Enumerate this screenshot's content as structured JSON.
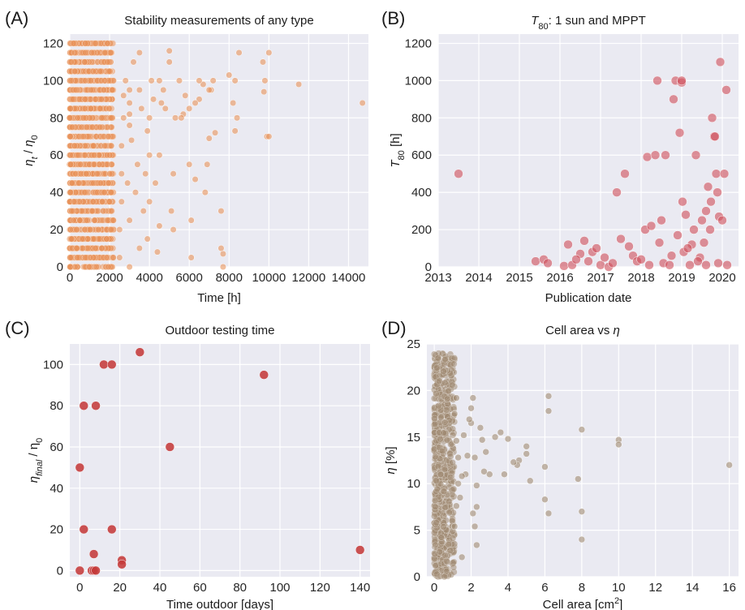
{
  "chart_data": [
    {
      "panel": "(A)",
      "type": "scatter",
      "title": "Stability measurements of any type",
      "xlabel": "Time [h]",
      "ylabel": "ηt / η0",
      "xlim": [
        0,
        15000
      ],
      "ylim": [
        0,
        125
      ],
      "xticks": [
        0,
        2000,
        4000,
        6000,
        8000,
        10000,
        12000,
        14000
      ],
      "xtick_labels": [
        "0",
        "2000",
        "4000",
        "6000",
        "8000",
        "10000",
        "12000",
        "14000"
      ],
      "yticks": [
        0,
        20,
        40,
        60,
        80,
        100,
        120
      ],
      "grid": true,
      "color": "#E8925A",
      "points": [
        [
          14700,
          88
        ],
        [
          11500,
          98
        ],
        [
          10000,
          115
        ],
        [
          9900,
          70
        ],
        [
          9700,
          110
        ],
        [
          9800,
          100
        ],
        [
          9750,
          94
        ],
        [
          10000,
          70
        ],
        [
          8500,
          115
        ],
        [
          8300,
          100
        ],
        [
          8200,
          88
        ],
        [
          8400,
          80
        ],
        [
          8300,
          73
        ],
        [
          8000,
          103
        ],
        [
          7600,
          30
        ],
        [
          7600,
          10
        ],
        [
          7700,
          7
        ],
        [
          7700,
          0
        ],
        [
          7200,
          100
        ],
        [
          7100,
          95
        ],
        [
          7000,
          69
        ],
        [
          7300,
          72
        ],
        [
          6800,
          40
        ],
        [
          6900,
          55
        ],
        [
          7000,
          95
        ],
        [
          6700,
          98
        ],
        [
          6500,
          100
        ],
        [
          6500,
          90
        ],
        [
          6300,
          88
        ],
        [
          6000,
          85
        ],
        [
          6300,
          47
        ],
        [
          6000,
          55
        ],
        [
          6100,
          25
        ],
        [
          6100,
          5
        ],
        [
          5800,
          92
        ],
        [
          5700,
          82
        ],
        [
          5500,
          100
        ],
        [
          5600,
          80
        ],
        [
          5300,
          80
        ],
        [
          5000,
          116
        ],
        [
          5000,
          110
        ],
        [
          5200,
          50
        ],
        [
          5100,
          30
        ],
        [
          5200,
          20
        ],
        [
          4800,
          85
        ],
        [
          4700,
          95
        ],
        [
          4500,
          100
        ],
        [
          4500,
          60
        ],
        [
          4600,
          88
        ],
        [
          4300,
          45
        ],
        [
          4500,
          22
        ],
        [
          4400,
          8
        ],
        [
          4200,
          90
        ],
        [
          4000,
          80
        ],
        [
          4100,
          100
        ],
        [
          3900,
          73
        ],
        [
          4000,
          60
        ],
        [
          3800,
          50
        ],
        [
          4000,
          35
        ],
        [
          3700,
          30
        ],
        [
          3900,
          15
        ],
        [
          3500,
          115
        ],
        [
          3500,
          95
        ],
        [
          3600,
          85
        ],
        [
          3400,
          55
        ],
        [
          3300,
          40
        ],
        [
          3500,
          10
        ],
        [
          3200,
          110
        ],
        [
          3100,
          68
        ],
        [
          3000,
          95
        ],
        [
          3000,
          88
        ],
        [
          3000,
          82
        ],
        [
          3000,
          76
        ],
        [
          3000,
          25
        ],
        [
          3000,
          0
        ],
        [
          2900,
          45
        ],
        [
          2800,
          100
        ],
        [
          2700,
          92
        ],
        [
          2700,
          80
        ],
        [
          2600,
          65
        ],
        [
          2600,
          50
        ],
        [
          2600,
          35
        ],
        [
          2500,
          20
        ],
        [
          2500,
          5
        ]
      ],
      "dense_region": {
        "x_max": 2200,
        "y_min": 0,
        "y_max": 122,
        "note": "thousands of overlapping points"
      }
    },
    {
      "panel": "(B)",
      "type": "scatter",
      "title_main": "T",
      "title_sub": "80",
      "title_rest": ": 1 sun and MPPT",
      "xlabel": "Publication date",
      "ylabel_main": "T",
      "ylabel_sub": "80",
      "ylabel_rest": " [h]",
      "xlim": [
        2013,
        2020.4
      ],
      "ylim": [
        0,
        1250
      ],
      "xticks": [
        2013,
        2014,
        2015,
        2016,
        2017,
        2018,
        2019,
        2020
      ],
      "yticks": [
        0,
        200,
        400,
        600,
        800,
        1000,
        1200
      ],
      "grid": true,
      "color": "#D0525E",
      "points": [
        [
          2013.5,
          500
        ],
        [
          2015.4,
          30
        ],
        [
          2015.6,
          40
        ],
        [
          2015.7,
          20
        ],
        [
          2016.1,
          5
        ],
        [
          2016.2,
          120
        ],
        [
          2016.3,
          10
        ],
        [
          2016.5,
          70
        ],
        [
          2016.6,
          140
        ],
        [
          2016.7,
          30
        ],
        [
          2016.8,
          80
        ],
        [
          2016.9,
          100
        ],
        [
          2017.0,
          10
        ],
        [
          2017.1,
          50
        ],
        [
          2017.2,
          0
        ],
        [
          2017.4,
          400
        ],
        [
          2017.5,
          150
        ],
        [
          2017.6,
          500
        ],
        [
          2017.7,
          110
        ],
        [
          2017.8,
          60
        ],
        [
          2017.9,
          30
        ],
        [
          2018.0,
          40
        ],
        [
          2018.1,
          200
        ],
        [
          2018.15,
          590
        ],
        [
          2018.25,
          220
        ],
        [
          2018.35,
          600
        ],
        [
          2018.4,
          1000
        ],
        [
          2018.45,
          130
        ],
        [
          2018.5,
          250
        ],
        [
          2018.55,
          20
        ],
        [
          2018.6,
          600
        ],
        [
          2018.7,
          10
        ],
        [
          2018.75,
          60
        ],
        [
          2018.8,
          900
        ],
        [
          2018.85,
          1000
        ],
        [
          2018.9,
          170
        ],
        [
          2018.95,
          720
        ],
        [
          2019.0,
          990
        ],
        [
          2019.0,
          1000
        ],
        [
          2019.02,
          350
        ],
        [
          2019.05,
          80
        ],
        [
          2019.1,
          280
        ],
        [
          2019.2,
          10
        ],
        [
          2019.25,
          120
        ],
        [
          2019.3,
          200
        ],
        [
          2019.35,
          600
        ],
        [
          2019.45,
          50
        ],
        [
          2019.5,
          250
        ],
        [
          2019.55,
          130
        ],
        [
          2019.6,
          300
        ],
        [
          2019.65,
          430
        ],
        [
          2019.7,
          200
        ],
        [
          2019.72,
          350
        ],
        [
          2019.75,
          800
        ],
        [
          2019.8,
          700
        ],
        [
          2019.82,
          700
        ],
        [
          2019.85,
          500
        ],
        [
          2019.88,
          400
        ],
        [
          2019.9,
          20
        ],
        [
          2019.92,
          270
        ],
        [
          2019.95,
          1100
        ],
        [
          2020.0,
          250
        ],
        [
          2020.05,
          500
        ],
        [
          2020.1,
          950
        ],
        [
          2020.12,
          10
        ],
        [
          2019.4,
          30
        ],
        [
          2018.2,
          10
        ],
        [
          2017.3,
          20
        ],
        [
          2016.4,
          40
        ],
        [
          2019.15,
          100
        ],
        [
          2019.6,
          10
        ]
      ]
    },
    {
      "panel": "(C)",
      "type": "scatter",
      "title": "Outdoor testing time",
      "xlabel": "Time outdoor [days]",
      "ylabel_main": "η",
      "ylabel_sub": "final",
      "ylabel_rest": " / η",
      "ylabel_sub2": "0",
      "xlim": [
        -5,
        145
      ],
      "ylim": [
        -3,
        110
      ],
      "xticks": [
        0,
        20,
        40,
        60,
        80,
        100,
        120,
        140
      ],
      "yticks": [
        0,
        20,
        40,
        60,
        80,
        100
      ],
      "grid": true,
      "color": "#C43A3A",
      "points": [
        [
          0,
          50
        ],
        [
          0,
          0
        ],
        [
          2,
          80
        ],
        [
          2,
          20
        ],
        [
          6,
          0
        ],
        [
          7,
          0
        ],
        [
          7,
          8
        ],
        [
          8,
          80
        ],
        [
          8,
          0
        ],
        [
          12,
          100
        ],
        [
          16,
          100
        ],
        [
          16,
          20
        ],
        [
          21,
          5
        ],
        [
          21,
          3
        ],
        [
          30,
          106
        ],
        [
          45,
          60
        ],
        [
          92,
          95
        ],
        [
          140,
          10
        ]
      ]
    },
    {
      "panel": "(D)",
      "type": "scatter",
      "title_main": "Cell area vs ",
      "title_eta": "η",
      "xlabel_main": "Cell area [cm",
      "xlabel_sup": "2",
      "xlabel_rest": "]",
      "ylabel": "η [%]",
      "xlim": [
        -0.4,
        16.5
      ],
      "ylim": [
        0,
        25
      ],
      "xticks": [
        0,
        2,
        4,
        6,
        8,
        10,
        12,
        14,
        16
      ],
      "yticks": [
        0,
        5,
        10,
        15,
        20,
        25
      ],
      "grid": true,
      "color": "#A08A72",
      "points": [
        [
          16,
          12
        ],
        [
          10,
          14.7
        ],
        [
          10,
          14.2
        ],
        [
          8,
          15.8
        ],
        [
          8,
          7
        ],
        [
          8,
          4
        ],
        [
          7.8,
          10.5
        ],
        [
          6.2,
          19.4
        ],
        [
          6.2,
          17.8
        ],
        [
          6.2,
          6.8
        ],
        [
          6.0,
          11.8
        ],
        [
          6.0,
          8.3
        ],
        [
          5.0,
          14
        ],
        [
          5.0,
          13.2
        ],
        [
          5.2,
          10.3
        ],
        [
          4.6,
          12.5
        ],
        [
          4.5,
          12.0
        ],
        [
          4.3,
          12.3
        ],
        [
          4.0,
          14.8
        ],
        [
          3.8,
          11.0
        ],
        [
          3.6,
          15.5
        ],
        [
          3.3,
          15.0
        ],
        [
          3.0,
          11.0
        ],
        [
          2.8,
          13.4
        ],
        [
          2.7,
          11.3
        ],
        [
          2.6,
          14.7
        ],
        [
          2.5,
          16.0
        ],
        [
          2.3,
          7.5
        ],
        [
          2.2,
          5.4
        ],
        [
          2.3,
          3.4
        ],
        [
          2.1,
          19.2
        ],
        [
          2.0,
          18.1
        ],
        [
          2.0,
          16.5
        ],
        [
          2.2,
          12.8
        ],
        [
          2.3,
          9.8
        ],
        [
          2.1,
          6.8
        ],
        [
          1.8,
          13.0
        ],
        [
          1.7,
          11.0
        ],
        [
          1.6,
          15.2
        ],
        [
          1.9,
          16.9
        ],
        [
          1.5,
          10.8
        ],
        [
          1.4,
          8.5
        ],
        [
          1.3,
          12.8
        ],
        [
          1.2,
          19.2
        ],
        [
          1.1,
          17.5
        ],
        [
          1.2,
          14.6
        ],
        [
          1.3,
          10.0
        ],
        [
          1.2,
          7.6
        ],
        [
          1.1,
          5.4
        ],
        [
          1.5,
          2.1
        ]
      ],
      "dense_region": {
        "x_max": 1.1,
        "y_min": 0,
        "y_max": 24,
        "note": "hundreds of overlapping points"
      }
    }
  ]
}
